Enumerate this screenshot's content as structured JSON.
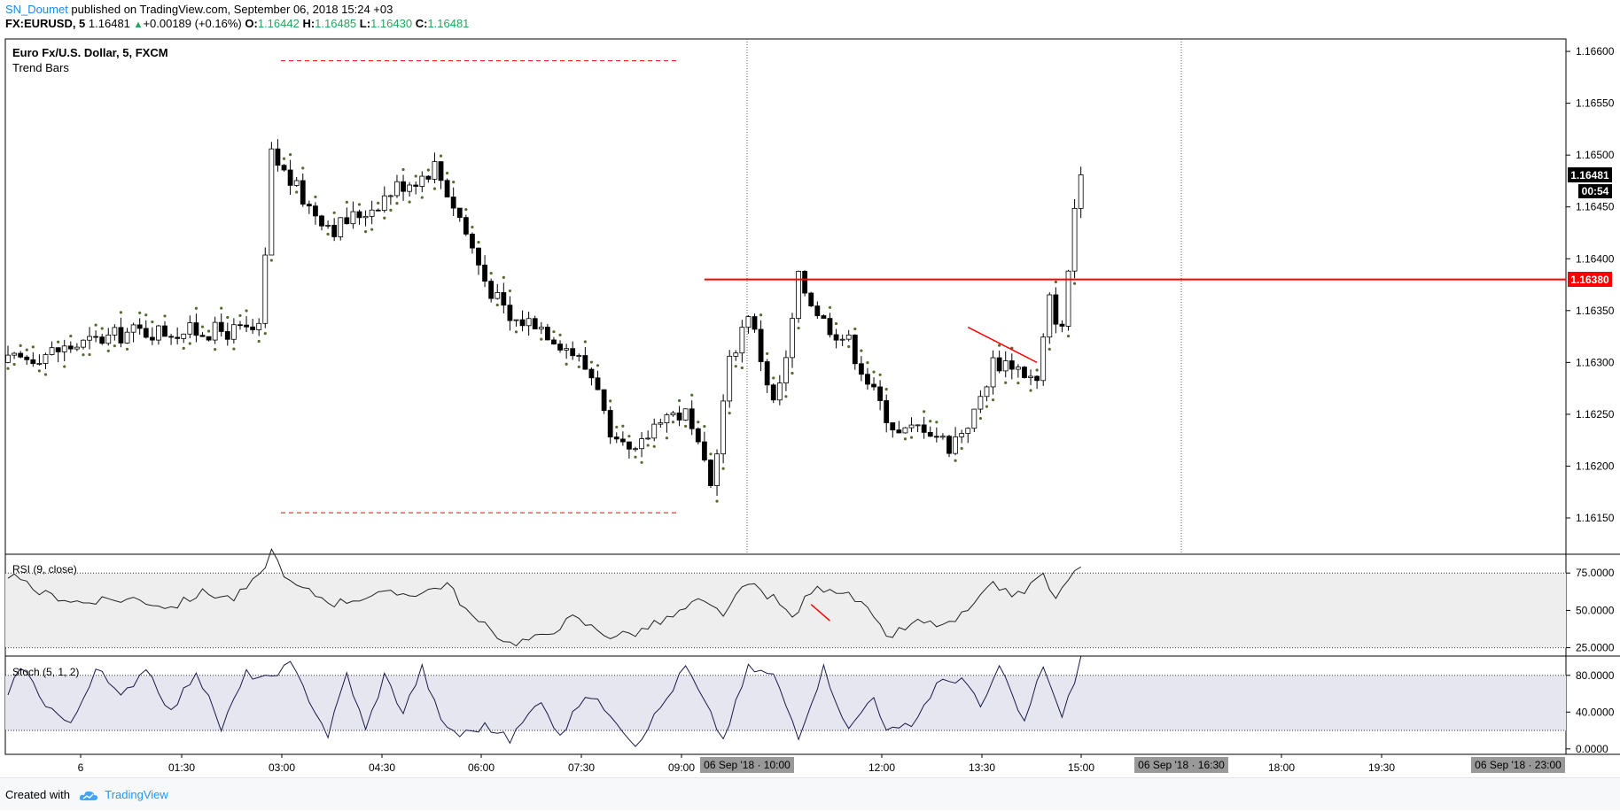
{
  "header": {
    "author": "SN_Doumet",
    "published": " published on TradingView.com, September 06, 2018 15:24 +03",
    "symbol": "FX:EURUSD, 5",
    "last": "1.16481",
    "change": "+0.00189 (+0.16%)",
    "o_label": "O:",
    "o_value": "1.16442",
    "h_label": "H:",
    "h_value": "1.16485",
    "l_label": "L:",
    "l_value": "1.16430",
    "c_label": "C:",
    "c_value": "1.16481"
  },
  "main_pane": {
    "title": "Euro Fx/U.S. Dollar, 5, FXCM",
    "indicator": "Trend Bars",
    "price_label": "1.16481",
    "countdown": "00:54",
    "line_label": "1.16380"
  },
  "rsi_pane": {
    "title": "RSI (9, close)"
  },
  "stoch_pane": {
    "title": "Stoch (5, 1, 2)"
  },
  "time_axis": {
    "cursor_labels": [
      "06 Sep '18 · 10:00",
      "06 Sep '18 · 16:30",
      "06 Sep '18 · 23:00"
    ]
  },
  "footer": {
    "created_with": "Created with",
    "brand": "TradingView"
  },
  "colors": {
    "up": "#ffffff",
    "down": "#000000",
    "marker": "#556b2f",
    "red": "#ff0000",
    "rsi_band": "#eeeeee",
    "stoch_band": "#e6e6f0",
    "stoch_line": "#1a1a4a"
  },
  "chart_data": [
    {
      "type": "candlestick",
      "title": "Euro Fx/U.S. Dollar, 5, FXCM",
      "y_ticks": [
        1.1615,
        1.162,
        1.1625,
        1.163,
        1.1635,
        1.164,
        1.1645,
        1.165,
        1.1655,
        1.166
      ],
      "y_tick_labels": [
        "1.16150",
        "1.16200",
        "1.16250",
        "1.16300",
        "1.16350",
        "1.16400",
        "1.16450",
        "1.16500",
        "1.16550",
        "1.16600"
      ],
      "ylim": [
        1.16115,
        1.16612
      ],
      "x_tick_labels": [
        "6",
        "01:30",
        "03:00",
        "04:30",
        "06:00",
        "07:30",
        "09:00",
        "12:00",
        "13:30",
        "15:00",
        "18:00",
        "19:30"
      ],
      "horizontal_line": 1.1638,
      "last": 1.16481,
      "waypoints": [
        [
          0,
          1.163
        ],
        [
          20,
          1.1633
        ],
        [
          40,
          1.1633
        ],
        [
          41,
          1.164
        ],
        [
          42,
          1.165
        ],
        [
          48,
          1.1645
        ],
        [
          52,
          1.1643
        ],
        [
          58,
          1.1645
        ],
        [
          62,
          1.1647
        ],
        [
          66,
          1.1648
        ],
        [
          68,
          1.1649
        ],
        [
          72,
          1.1644
        ],
        [
          76,
          1.1638
        ],
        [
          80,
          1.1634
        ],
        [
          84,
          1.1634
        ],
        [
          90,
          1.1631
        ],
        [
          94,
          1.1628
        ],
        [
          96,
          1.1622
        ],
        [
          100,
          1.1621
        ],
        [
          104,
          1.1625
        ],
        [
          108,
          1.1625
        ],
        [
          112,
          1.1618
        ],
        [
          115,
          1.163
        ],
        [
          118,
          1.1635
        ],
        [
          122,
          1.1626
        ],
        [
          124,
          1.163
        ],
        [
          126,
          1.1638
        ],
        [
          130,
          1.1634
        ],
        [
          134,
          1.1632
        ],
        [
          138,
          1.1627
        ],
        [
          142,
          1.1623
        ],
        [
          146,
          1.1624
        ],
        [
          150,
          1.1622
        ],
        [
          154,
          1.1625
        ],
        [
          157,
          1.163
        ],
        [
          160,
          1.163
        ],
        [
          164,
          1.1628
        ],
        [
          166,
          1.1636
        ],
        [
          168,
          1.1633
        ],
        [
          170,
          1.1645
        ],
        [
          171,
          1.16481
        ]
      ]
    },
    {
      "type": "line",
      "title": "RSI (9, close)",
      "y_ticks": [
        25,
        50,
        75
      ],
      "y_tick_labels": [
        "25.0000",
        "50.0000",
        "75.0000"
      ],
      "ylim": [
        20,
        87
      ],
      "bands": [
        25,
        75
      ],
      "waypoints": [
        [
          0,
          74
        ],
        [
          5,
          62
        ],
        [
          12,
          55
        ],
        [
          20,
          58
        ],
        [
          26,
          52
        ],
        [
          31,
          62
        ],
        [
          36,
          58
        ],
        [
          40,
          72
        ],
        [
          42,
          90
        ],
        [
          45,
          68
        ],
        [
          52,
          55
        ],
        [
          58,
          60
        ],
        [
          66,
          62
        ],
        [
          70,
          68
        ],
        [
          74,
          45
        ],
        [
          80,
          28
        ],
        [
          85,
          32
        ],
        [
          90,
          45
        ],
        [
          96,
          33
        ],
        [
          100,
          35
        ],
        [
          106,
          46
        ],
        [
          110,
          56
        ],
        [
          114,
          48
        ],
        [
          118,
          68
        ],
        [
          122,
          58
        ],
        [
          125,
          45
        ],
        [
          128,
          63
        ],
        [
          131,
          66
        ],
        [
          136,
          55
        ],
        [
          140,
          32
        ],
        [
          145,
          42
        ],
        [
          150,
          40
        ],
        [
          154,
          53
        ],
        [
          157,
          67
        ],
        [
          161,
          60
        ],
        [
          165,
          74
        ],
        [
          167,
          56
        ],
        [
          169,
          72
        ],
        [
          171,
          78
        ]
      ]
    },
    {
      "type": "line",
      "title": "Stoch (5, 1, 2)",
      "y_ticks": [
        0,
        40,
        80
      ],
      "y_tick_labels": [
        "0.0000",
        "40.0000",
        "80.0000"
      ],
      "ylim": [
        -5,
        100
      ],
      "bands": [
        20,
        80
      ],
      "waypoints": [
        [
          0,
          55
        ],
        [
          2,
          92
        ],
        [
          6,
          50
        ],
        [
          10,
          25
        ],
        [
          14,
          88
        ],
        [
          18,
          55
        ],
        [
          22,
          90
        ],
        [
          26,
          40
        ],
        [
          30,
          85
        ],
        [
          34,
          22
        ],
        [
          38,
          82
        ],
        [
          42,
          75
        ],
        [
          45,
          92
        ],
        [
          48,
          55
        ],
        [
          51,
          15
        ],
        [
          54,
          82
        ],
        [
          57,
          20
        ],
        [
          60,
          80
        ],
        [
          63,
          40
        ],
        [
          66,
          88
        ],
        [
          69,
          30
        ],
        [
          72,
          15
        ],
        [
          76,
          25
        ],
        [
          80,
          10
        ],
        [
          85,
          55
        ],
        [
          88,
          12
        ],
        [
          92,
          60
        ],
        [
          96,
          40
        ],
        [
          100,
          5
        ],
        [
          105,
          55
        ],
        [
          108,
          90
        ],
        [
          111,
          50
        ],
        [
          114,
          10
        ],
        [
          118,
          88
        ],
        [
          122,
          80
        ],
        [
          126,
          15
        ],
        [
          130,
          88
        ],
        [
          134,
          20
        ],
        [
          138,
          60
        ],
        [
          140,
          18
        ],
        [
          144,
          25
        ],
        [
          148,
          70
        ],
        [
          152,
          78
        ],
        [
          155,
          45
        ],
        [
          158,
          88
        ],
        [
          162,
          28
        ],
        [
          165,
          92
        ],
        [
          168,
          32
        ],
        [
          171,
          98
        ]
      ]
    }
  ]
}
